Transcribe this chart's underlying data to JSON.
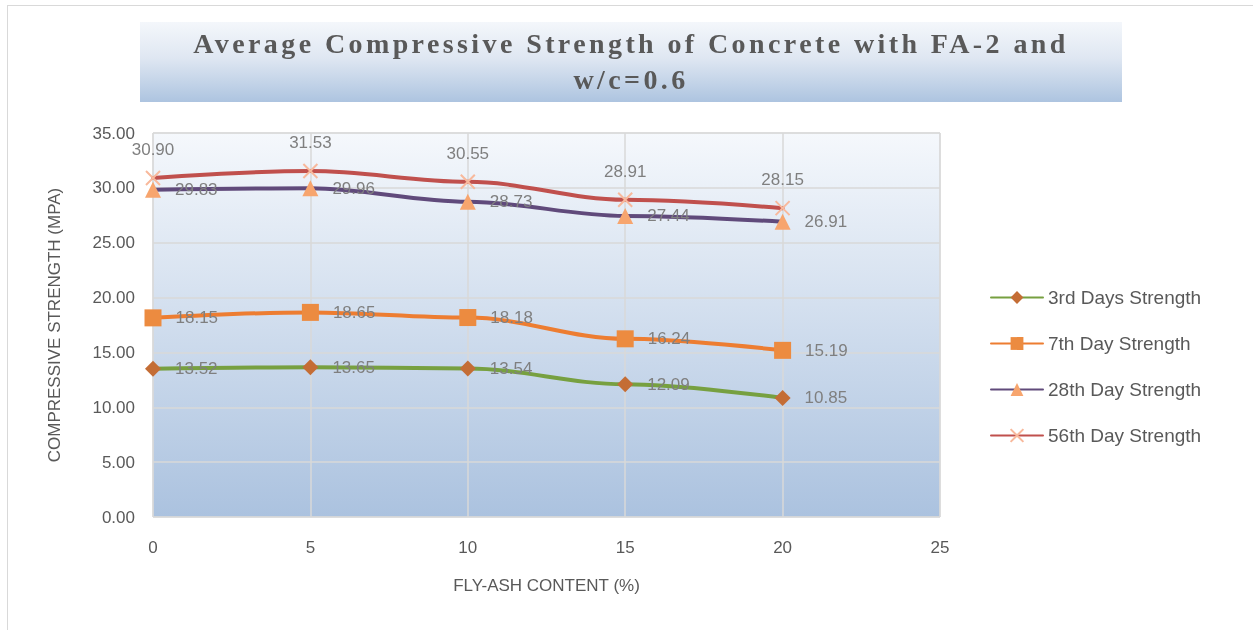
{
  "chart_data": {
    "type": "line",
    "title": "Average Compressive Strength of Concrete with FA-2 and w/c=0.6",
    "xlabel": "FLY-ASH CONTENT (%)",
    "ylabel": "COMPRESSIVE STRENGTH (MPA)",
    "x": [
      0,
      5,
      10,
      15,
      20
    ],
    "xlim": [
      0,
      25
    ],
    "xticks": [
      0,
      5,
      10,
      15,
      20,
      25
    ],
    "ylim": [
      0,
      35
    ],
    "yticks": [
      {
        "value": 0,
        "label": "0.00"
      },
      {
        "value": 5,
        "label": "5.00"
      },
      {
        "value": 10,
        "label": "10.00"
      },
      {
        "value": 15,
        "label": "15.00"
      },
      {
        "value": 20,
        "label": "20.00"
      },
      {
        "value": 25,
        "label": "25.00"
      },
      {
        "value": 30,
        "label": "30.00"
      },
      {
        "value": 35,
        "label": "35.00"
      }
    ],
    "grid": true,
    "legend": "right",
    "line_style": "solid",
    "series": [
      {
        "name": "3rd Days Strength",
        "color": "#77a040",
        "colors": [
          "#c46d35",
          "#c46d35",
          "#c46d35",
          "#c46d35",
          "#c46d35"
        ],
        "marker": "diamond",
        "values": [
          13.52,
          13.65,
          13.54,
          12.09,
          10.85
        ],
        "value_labels": [
          "13.52",
          "13.65",
          "13.54",
          "12.09",
          "10.85"
        ]
      },
      {
        "name": "7th Day Strength",
        "color": "#ed7d31",
        "colors": [
          "#ec8b40",
          "#ec8b40",
          "#ec8b40",
          "#ec8b40",
          "#ec8b40"
        ],
        "marker": "square",
        "values": [
          18.15,
          18.65,
          18.18,
          16.24,
          15.19
        ],
        "value_labels": [
          "18.15",
          "18.65",
          "18.18",
          "16.24",
          "15.19"
        ]
      },
      {
        "name": "28th Day Strength",
        "color": "#604a7b",
        "colors": [
          "#f7a56e",
          "#f7a56e",
          "#f7a56e",
          "#f7a56e",
          "#f7a56e"
        ],
        "marker": "triangle",
        "values": [
          29.83,
          29.96,
          28.73,
          27.44,
          26.91
        ],
        "value_labels": [
          "29.83",
          "29.96",
          "28.73",
          "27.44",
          "26.91"
        ]
      },
      {
        "name": "56th Day Strength",
        "color": "#c0504d",
        "colors": [
          "#f8b99c",
          "#f8b99c",
          "#f8b99c",
          "#f8b99c",
          "#f8b99c"
        ],
        "marker": "cross",
        "values": [
          30.9,
          31.53,
          30.55,
          28.91,
          28.15
        ],
        "value_labels": [
          "30.90",
          "31.53",
          "30.55",
          "28.91",
          "28.15"
        ]
      }
    ]
  }
}
